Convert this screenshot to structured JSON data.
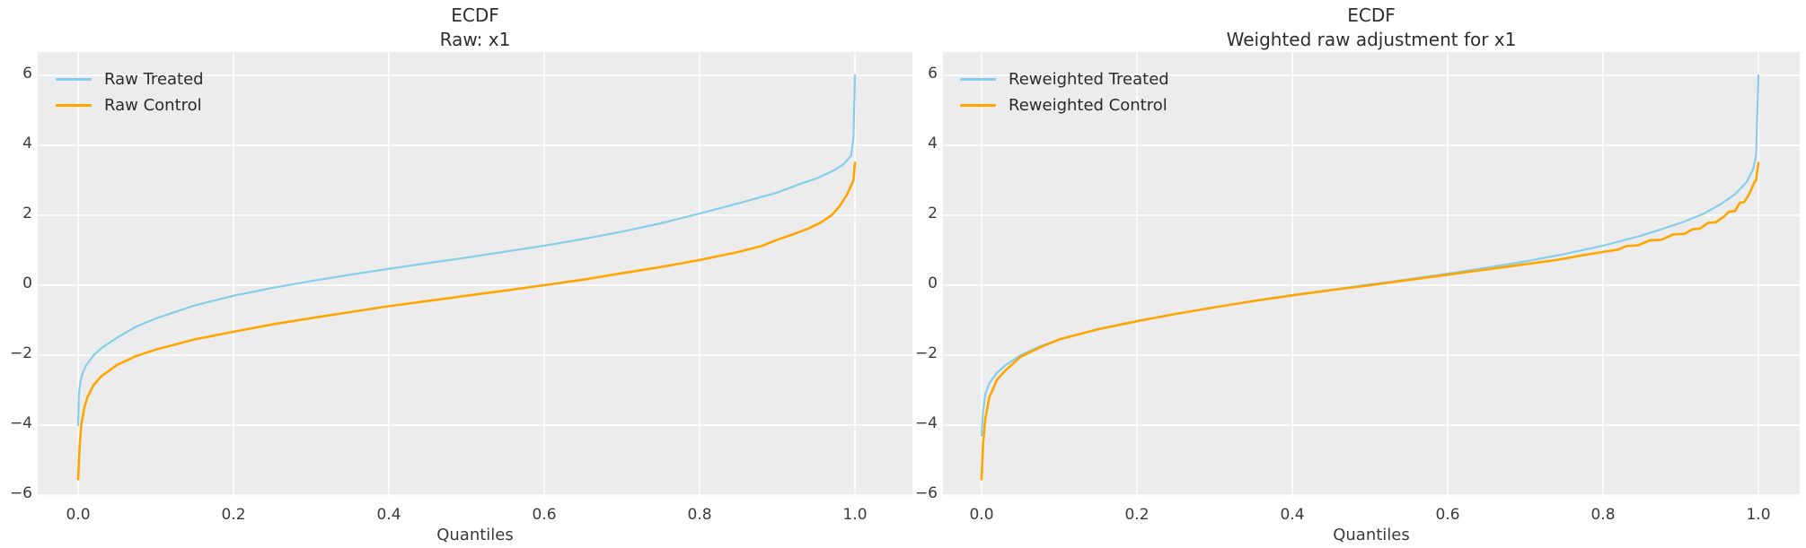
{
  "figure": {
    "background": "#ffffff",
    "panel_background": "#ececec",
    "grid_color": "#ffffff",
    "title_color": "#2e2e2e",
    "tick_color": "#3a3a3a"
  },
  "colors": {
    "treated": "#87ceeb",
    "control": "#ffa500"
  },
  "chart_data": [
    {
      "type": "line",
      "title": "ECDF",
      "subtitle": "Raw: x1",
      "xlabel": "Quantiles",
      "ylabel": "",
      "xlim": [
        -0.05,
        1.07
      ],
      "ylim": [
        -6.1,
        6.7
      ],
      "xticks": [
        0.0,
        0.2,
        0.4,
        0.6,
        0.8,
        1.0
      ],
      "xtick_labels": [
        "0.0",
        "0.2",
        "0.4",
        "0.6",
        "0.8",
        "1.0"
      ],
      "yticks": [
        -6,
        -4,
        -2,
        0,
        2,
        4,
        6
      ],
      "ytick_labels": [
        "−6",
        "−4",
        "−2",
        "0",
        "2",
        "4",
        "6"
      ],
      "grid": true,
      "legend_position": "upper left",
      "series": [
        {
          "name": "Raw Treated",
          "color": "#87ceeb",
          "width": 2.2,
          "points": [
            [
              0.0,
              -4.0
            ],
            [
              0.001,
              -3.1
            ],
            [
              0.003,
              -2.75
            ],
            [
              0.006,
              -2.5
            ],
            [
              0.01,
              -2.3
            ],
            [
              0.02,
              -2.0
            ],
            [
              0.03,
              -1.8
            ],
            [
              0.05,
              -1.5
            ],
            [
              0.075,
              -1.18
            ],
            [
              0.1,
              -0.95
            ],
            [
              0.15,
              -0.58
            ],
            [
              0.2,
              -0.3
            ],
            [
              0.25,
              -0.08
            ],
            [
              0.3,
              0.12
            ],
            [
              0.35,
              0.3
            ],
            [
              0.4,
              0.47
            ],
            [
              0.45,
              0.63
            ],
            [
              0.5,
              0.79
            ],
            [
              0.55,
              0.96
            ],
            [
              0.6,
              1.13
            ],
            [
              0.65,
              1.32
            ],
            [
              0.7,
              1.53
            ],
            [
              0.75,
              1.77
            ],
            [
              0.8,
              2.05
            ],
            [
              0.85,
              2.34
            ],
            [
              0.9,
              2.65
            ],
            [
              0.93,
              2.9
            ],
            [
              0.95,
              3.05
            ],
            [
              0.97,
              3.25
            ],
            [
              0.985,
              3.45
            ],
            [
              0.995,
              3.7
            ],
            [
              0.998,
              4.2
            ],
            [
              1.0,
              6.0
            ]
          ]
        },
        {
          "name": "Raw Control",
          "color": "#ffa500",
          "width": 2.6,
          "points": [
            [
              0.0,
              -5.55
            ],
            [
              0.002,
              -4.6
            ],
            [
              0.004,
              -4.0
            ],
            [
              0.008,
              -3.5
            ],
            [
              0.012,
              -3.2
            ],
            [
              0.02,
              -2.85
            ],
            [
              0.03,
              -2.6
            ],
            [
              0.05,
              -2.28
            ],
            [
              0.075,
              -2.02
            ],
            [
              0.1,
              -1.84
            ],
            [
              0.15,
              -1.55
            ],
            [
              0.2,
              -1.33
            ],
            [
              0.25,
              -1.12
            ],
            [
              0.3,
              -0.94
            ],
            [
              0.35,
              -0.77
            ],
            [
              0.4,
              -0.6
            ],
            [
              0.45,
              -0.45
            ],
            [
              0.5,
              -0.3
            ],
            [
              0.55,
              -0.15
            ],
            [
              0.6,
              0.0
            ],
            [
              0.65,
              0.16
            ],
            [
              0.7,
              0.34
            ],
            [
              0.75,
              0.52
            ],
            [
              0.8,
              0.72
            ],
            [
              0.85,
              0.95
            ],
            [
              0.88,
              1.12
            ],
            [
              0.9,
              1.3
            ],
            [
              0.92,
              1.45
            ],
            [
              0.94,
              1.62
            ],
            [
              0.955,
              1.78
            ],
            [
              0.97,
              2.0
            ],
            [
              0.98,
              2.25
            ],
            [
              0.99,
              2.6
            ],
            [
              0.995,
              2.85
            ],
            [
              0.998,
              3.0
            ],
            [
              1.0,
              3.5
            ]
          ]
        }
      ]
    },
    {
      "type": "line",
      "title": "ECDF",
      "subtitle": "Weighted raw adjustment for x1",
      "xlabel": "Quantiles",
      "ylabel": "",
      "xlim": [
        -0.05,
        1.07
      ],
      "ylim": [
        -6.1,
        6.7
      ],
      "xticks": [
        0.0,
        0.2,
        0.4,
        0.6,
        0.8,
        1.0
      ],
      "xtick_labels": [
        "0.0",
        "0.2",
        "0.4",
        "0.6",
        "0.8",
        "1.0"
      ],
      "yticks": [
        -6,
        -4,
        -2,
        0,
        2,
        4,
        6
      ],
      "ytick_labels": [
        "−6",
        "−4",
        "−2",
        "0",
        "2",
        "4",
        "6"
      ],
      "grid": true,
      "legend_position": "upper left",
      "series": [
        {
          "name": "Reweighted Treated",
          "color": "#87ceeb",
          "width": 2.2,
          "points": [
            [
              0.0,
              -4.3
            ],
            [
              0.002,
              -3.6
            ],
            [
              0.005,
              -3.1
            ],
            [
              0.01,
              -2.8
            ],
            [
              0.02,
              -2.5
            ],
            [
              0.03,
              -2.3
            ],
            [
              0.05,
              -2.0
            ],
            [
              0.075,
              -1.75
            ],
            [
              0.1,
              -1.55
            ],
            [
              0.15,
              -1.25
            ],
            [
              0.2,
              -1.02
            ],
            [
              0.25,
              -0.82
            ],
            [
              0.3,
              -0.63
            ],
            [
              0.35,
              -0.45
            ],
            [
              0.4,
              -0.28
            ],
            [
              0.45,
              -0.13
            ],
            [
              0.5,
              0.02
            ],
            [
              0.55,
              0.17
            ],
            [
              0.6,
              0.33
            ],
            [
              0.65,
              0.5
            ],
            [
              0.7,
              0.68
            ],
            [
              0.75,
              0.89
            ],
            [
              0.8,
              1.13
            ],
            [
              0.85,
              1.42
            ],
            [
              0.9,
              1.78
            ],
            [
              0.93,
              2.05
            ],
            [
              0.95,
              2.3
            ],
            [
              0.97,
              2.6
            ],
            [
              0.985,
              2.95
            ],
            [
              0.993,
              3.3
            ],
            [
              0.997,
              3.7
            ],
            [
              1.0,
              6.0
            ]
          ]
        },
        {
          "name": "Reweighted Control",
          "color": "#ffa500",
          "width": 2.6,
          "points": [
            [
              0.0,
              -5.55
            ],
            [
              0.002,
              -4.5
            ],
            [
              0.005,
              -3.8
            ],
            [
              0.01,
              -3.2
            ],
            [
              0.02,
              -2.7
            ],
            [
              0.03,
              -2.45
            ],
            [
              0.05,
              -2.05
            ],
            [
              0.075,
              -1.78
            ],
            [
              0.1,
              -1.55
            ],
            [
              0.15,
              -1.26
            ],
            [
              0.2,
              -1.03
            ],
            [
              0.25,
              -0.82
            ],
            [
              0.3,
              -0.63
            ],
            [
              0.35,
              -0.45
            ],
            [
              0.4,
              -0.29
            ],
            [
              0.45,
              -0.14
            ],
            [
              0.5,
              0.0
            ],
            [
              0.55,
              0.15
            ],
            [
              0.6,
              0.3
            ],
            [
              0.65,
              0.45
            ],
            [
              0.7,
              0.6
            ],
            [
              0.74,
              0.72
            ],
            [
              0.78,
              0.88
            ],
            [
              0.8,
              0.95
            ],
            [
              0.82,
              1.02
            ],
            [
              0.83,
              1.12
            ],
            [
              0.845,
              1.14
            ],
            [
              0.86,
              1.28
            ],
            [
              0.875,
              1.3
            ],
            [
              0.89,
              1.45
            ],
            [
              0.905,
              1.47
            ],
            [
              0.915,
              1.6
            ],
            [
              0.925,
              1.62
            ],
            [
              0.935,
              1.78
            ],
            [
              0.945,
              1.8
            ],
            [
              0.955,
              1.95
            ],
            [
              0.962,
              2.1
            ],
            [
              0.97,
              2.12
            ],
            [
              0.976,
              2.35
            ],
            [
              0.982,
              2.38
            ],
            [
              0.988,
              2.6
            ],
            [
              0.992,
              2.8
            ],
            [
              0.995,
              2.95
            ],
            [
              0.997,
              3.0
            ],
            [
              1.0,
              3.5
            ]
          ]
        }
      ]
    }
  ]
}
